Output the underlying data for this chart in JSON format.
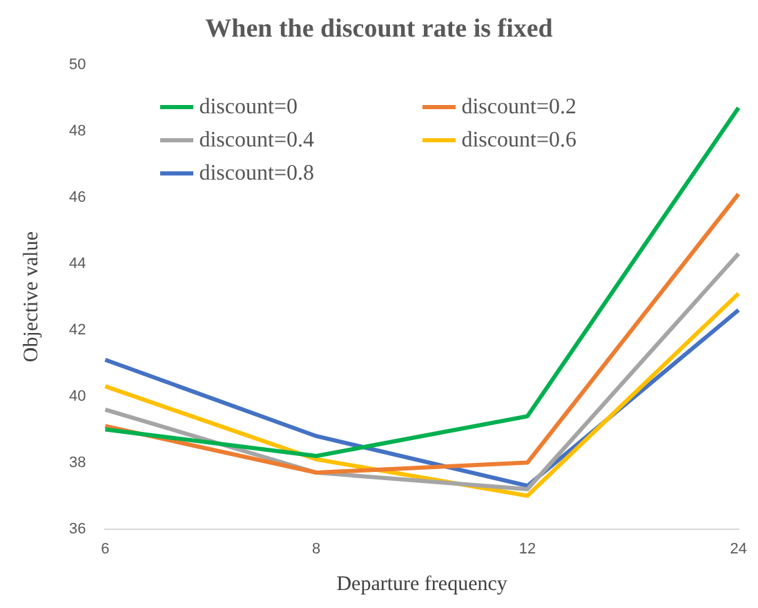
{
  "chart_data": {
    "type": "line",
    "title": "When the discount rate is fixed",
    "xlabel": "Departure frequency",
    "ylabel": "Objective value",
    "categories": [
      "6",
      "8",
      "12",
      "24"
    ],
    "series": [
      {
        "name": "discount=0",
        "color": "#00b050",
        "values": [
          39.0,
          38.2,
          39.4,
          48.7
        ]
      },
      {
        "name": "discount=0.2",
        "color": "#ed7d31",
        "values": [
          39.1,
          37.7,
          38.0,
          46.1
        ]
      },
      {
        "name": "discount=0.4",
        "color": "#a5a5a5",
        "values": [
          39.6,
          37.7,
          37.2,
          44.3
        ]
      },
      {
        "name": "discount=0.6",
        "color": "#ffc000",
        "values": [
          40.3,
          38.1,
          37.0,
          43.1
        ]
      },
      {
        "name": "discount=0.8",
        "color": "#4472c4",
        "values": [
          41.1,
          38.8,
          37.3,
          42.6
        ]
      }
    ],
    "ylim": [
      36,
      50
    ],
    "yticks": [
      36,
      38,
      40,
      42,
      44,
      46,
      48,
      50
    ],
    "grid": false,
    "legend": "top left",
    "marker": "none",
    "line_style": "solid"
  }
}
